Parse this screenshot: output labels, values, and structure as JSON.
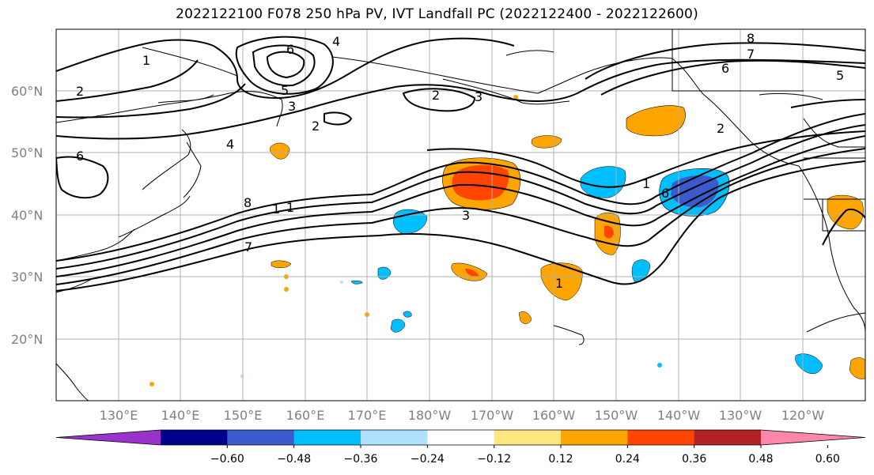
{
  "title": "2022122100 F078 250 hPa PV, IVT Landfall PC (2022122400 - 2022122600)",
  "lat_labels": [
    "20°N",
    "30°N",
    "40°N",
    "50°N",
    "60°N"
  ],
  "lon_labels": [
    "130°E",
    "140°E",
    "150°E",
    "160°E",
    "170°E",
    "180°W",
    "170°W",
    "160°W",
    "150°W",
    "140°W",
    "130°W",
    "120°W"
  ],
  "colorbar": {
    "ticks": [
      "−0.60",
      "−0.48",
      "−0.36",
      "−0.24",
      "−0.12",
      "0.12",
      "0.24",
      "0.36",
      "0.48",
      "0.60"
    ],
    "colors": [
      "#9933cc",
      "#00008b",
      "#3b5bcc",
      "#00bfff",
      "#b0e0ff",
      "#ffffff",
      "#ffe680",
      "#ffa500",
      "#ff4500",
      "#b22222",
      "#ff88aa"
    ]
  },
  "contour_labels": [
    "1",
    "2",
    "2",
    "2",
    "3",
    "3",
    "4",
    "4",
    "5",
    "5",
    "6",
    "6",
    "6",
    "7",
    "7",
    "8",
    "8",
    "1",
    "1",
    "2",
    "3",
    "1",
    "1",
    "6"
  ],
  "colors": {
    "grid": "#b0b0b0",
    "contour": "#000000",
    "coast": "#000000",
    "tick_label": "#808080"
  },
  "pc_fill": {
    "orange": "#ffa500",
    "pale_yellow": "#ffe680",
    "red_orange": "#ff4500",
    "deep_sky_blue": "#00bfff",
    "light_blue": "#b0e0ff",
    "royal_blue": "#3b5bcc"
  }
}
